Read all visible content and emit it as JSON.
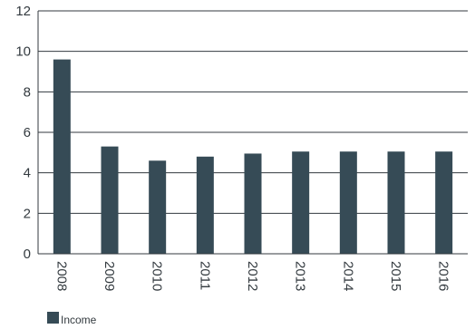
{
  "chart_data": {
    "type": "bar",
    "categories": [
      "2008",
      "2009",
      "2010",
      "2011",
      "2012",
      "2013",
      "2014",
      "2015",
      "2016"
    ],
    "series": [
      {
        "name": "Income",
        "values": [
          9.6,
          5.3,
          4.6,
          4.8,
          4.95,
          5.05,
          5.05,
          5.05,
          5.05
        ],
        "color": "#364b56"
      }
    ],
    "y_ticks": [
      "0",
      "2",
      "4",
      "6",
      "8",
      "10",
      "12"
    ],
    "ylim": [
      0,
      12
    ],
    "grid": true,
    "legend_position": "bottom-left"
  }
}
